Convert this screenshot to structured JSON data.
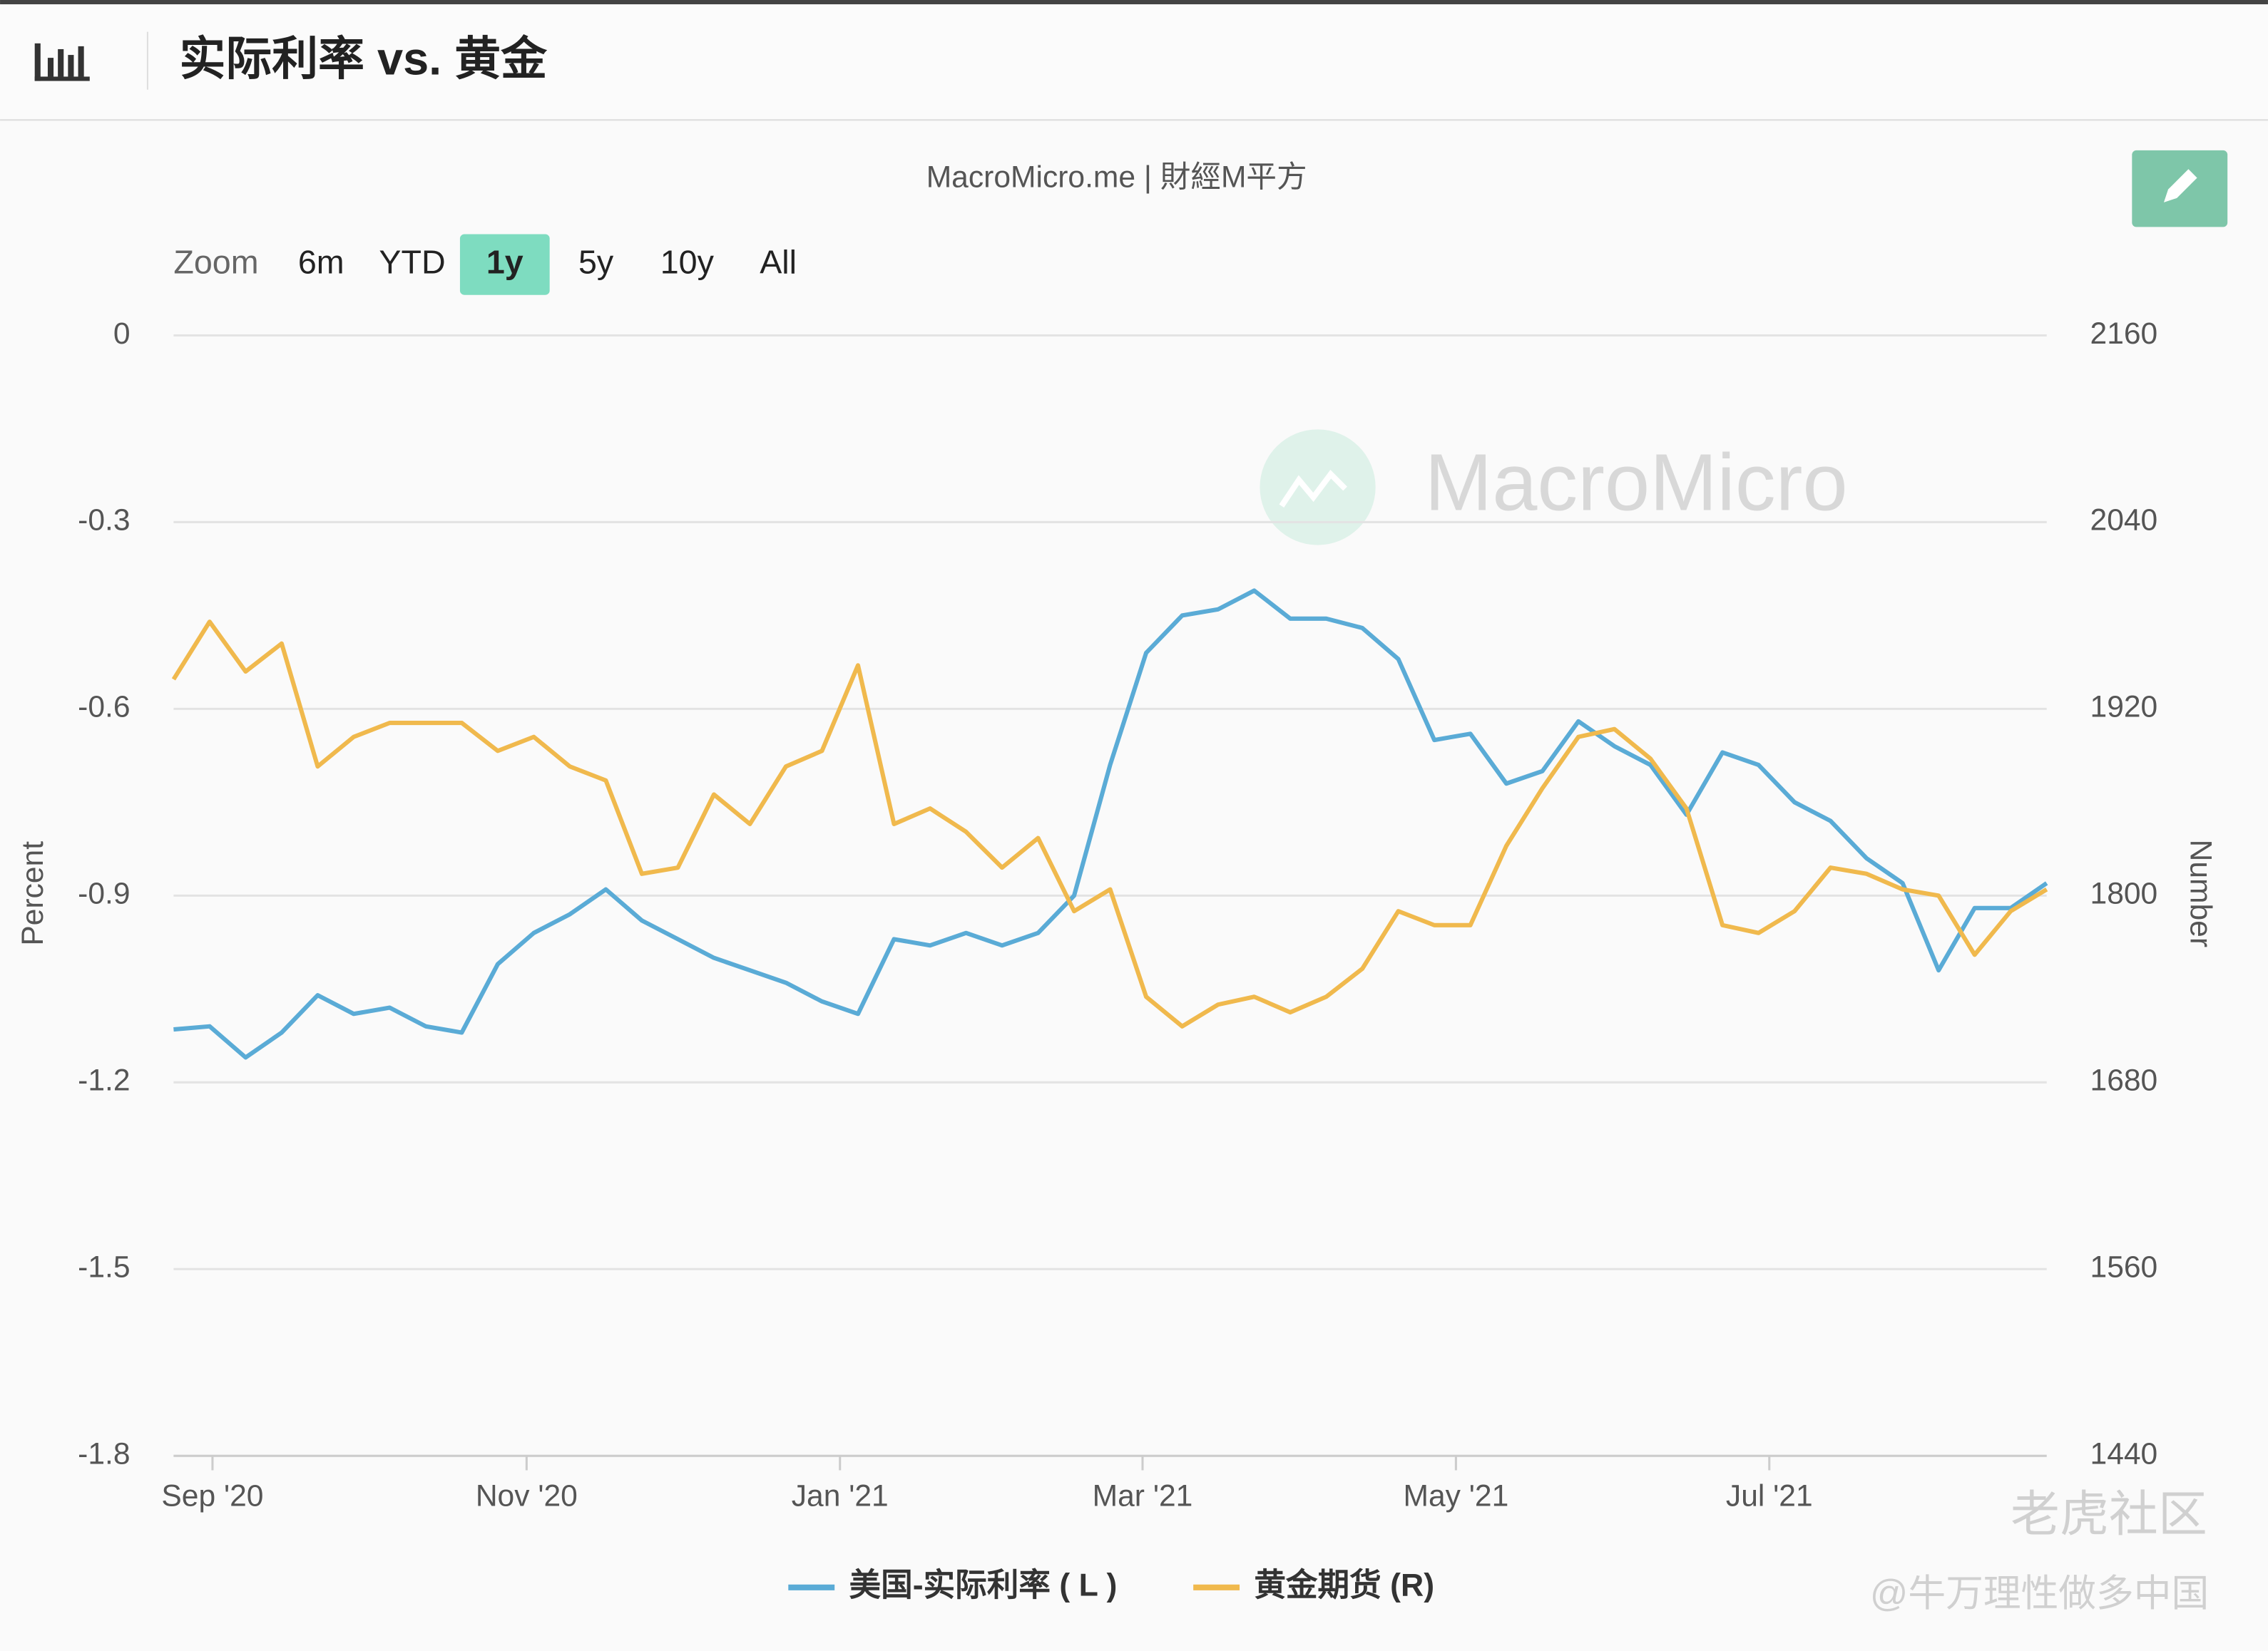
{
  "header": {
    "title": "实际利率 vs. 黄金"
  },
  "zoom": {
    "label": "Zoom",
    "options": [
      "6m",
      "YTD",
      "1y",
      "5y",
      "10y",
      "All"
    ],
    "active": 2
  },
  "watermarks": [
    "老虎社区",
    "@牛万理性做多中国"
  ],
  "chart_data": {
    "type": "line",
    "subtitle": "MacroMicro.me | 財經M平方",
    "watermark": "MacroMicro",
    "ylabel": "Percent",
    "y2label": "Number",
    "ylim": [
      -1.8,
      0
    ],
    "yticks": [
      0,
      -0.3,
      -0.6,
      -0.9,
      -1.2,
      -1.5,
      -1.8
    ],
    "y2lim": [
      1440,
      2160
    ],
    "y2ticks": [
      2160,
      2040,
      1920,
      1800,
      1680,
      1560,
      1440
    ],
    "xlim": [
      0,
      52
    ],
    "xticks": [
      {
        "value": 1.08,
        "label": "Sep '20"
      },
      {
        "value": 9.8,
        "label": "Nov '20"
      },
      {
        "value": 18.5,
        "label": "Jan '21"
      },
      {
        "value": 26.9,
        "label": "Mar '21"
      },
      {
        "value": 35.6,
        "label": "May '21"
      },
      {
        "value": 44.3,
        "label": "Jul '21"
      }
    ],
    "grid": true,
    "legend": "bottom",
    "series": [
      {
        "name": "美国-实际利率 ( L )",
        "color": "#5aabd6",
        "axis": "y",
        "values": [
          -1.115,
          -1.11,
          -1.16,
          -1.12,
          -1.06,
          -1.09,
          -1.08,
          -1.11,
          -1.12,
          -1.01,
          -0.96,
          -0.93,
          -0.89,
          -0.94,
          -0.97,
          -1.0,
          -1.02,
          -1.04,
          -1.07,
          -1.09,
          -0.97,
          -0.98,
          -0.96,
          -0.98,
          -0.96,
          -0.9,
          -0.69,
          -0.51,
          -0.45,
          -0.44,
          -0.41,
          -0.455,
          -0.455,
          -0.47,
          -0.52,
          -0.65,
          -0.64,
          -0.72,
          -0.7,
          -0.62,
          -0.66,
          -0.69,
          -0.77,
          -0.67,
          -0.69,
          -0.75,
          -0.78,
          -0.84,
          -0.88,
          -1.02,
          -0.92,
          -0.92,
          -0.88
        ]
      },
      {
        "name": "黄金期货 (R)",
        "color": "#f0b94d",
        "axis": "y2",
        "values": [
          1939,
          1976,
          1944,
          1962,
          1883,
          1902,
          1911,
          1911,
          1911,
          1893,
          1902,
          1883,
          1874,
          1814,
          1818,
          1865,
          1846,
          1883,
          1893,
          1948,
          1846,
          1856,
          1841,
          1818,
          1837,
          1790,
          1804,
          1735,
          1716,
          1730,
          1735,
          1725,
          1735,
          1753,
          1790,
          1781,
          1781,
          1832,
          1869,
          1902,
          1907,
          1888,
          1856,
          1781,
          1776,
          1790,
          1818,
          1814,
          1804,
          1800,
          1762,
          1790,
          1804
        ]
      }
    ]
  }
}
